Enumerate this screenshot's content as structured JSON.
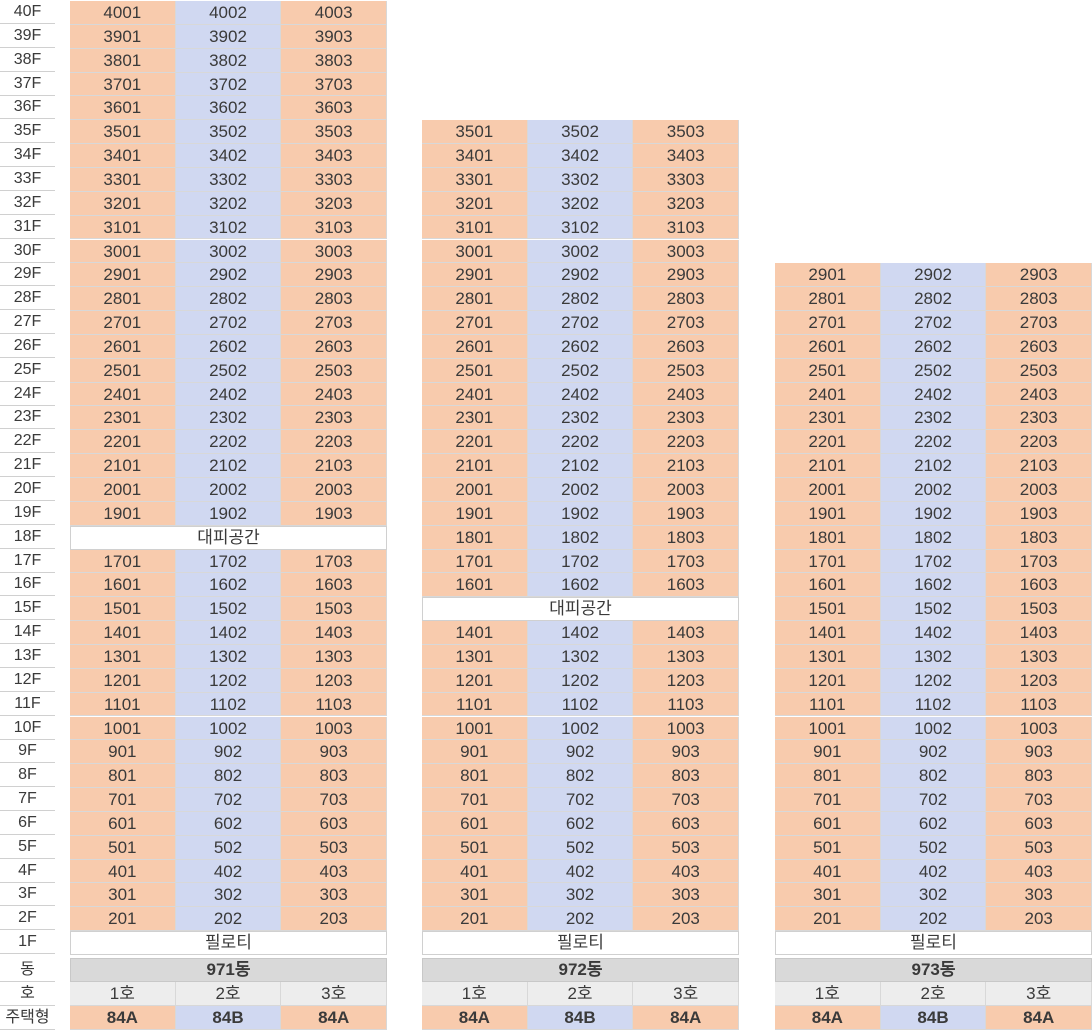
{
  "floor_labels": [
    "40F",
    "39F",
    "38F",
    "37F",
    "36F",
    "35F",
    "34F",
    "33F",
    "32F",
    "31F",
    "30F",
    "29F",
    "28F",
    "27F",
    "26F",
    "25F",
    "24F",
    "23F",
    "22F",
    "21F",
    "20F",
    "19F",
    "18F",
    "17F",
    "16F",
    "15F",
    "14F",
    "13F",
    "12F",
    "11F",
    "10F",
    "9F",
    "8F",
    "7F",
    "6F",
    "5F",
    "4F",
    "3F",
    "2F",
    "1F"
  ],
  "footer_labels": {
    "dong": "동",
    "ho": "호",
    "type": "주택형"
  },
  "colors": {
    "type_a": "#f8cbad",
    "type_b": "#d0d8f1",
    "header": "#d9d9d9",
    "ho_row": "#ededed"
  },
  "buildings": [
    {
      "name": "971동",
      "ho": [
        "1호",
        "2호",
        "3호"
      ],
      "types": [
        "84A",
        "84B",
        "84A"
      ],
      "rows": [
        [
          "4001",
          "4002",
          "4003"
        ],
        [
          "3901",
          "3902",
          "3903"
        ],
        [
          "3801",
          "3802",
          "3803"
        ],
        [
          "3701",
          "3702",
          "3703"
        ],
        [
          "3601",
          "3602",
          "3603"
        ],
        [
          "3501",
          "3502",
          "3503"
        ],
        [
          "3401",
          "3402",
          "3403"
        ],
        [
          "3301",
          "3302",
          "3303"
        ],
        [
          "3201",
          "3202",
          "3203"
        ],
        [
          "3101",
          "3102",
          "3103"
        ],
        [
          "3001",
          "3002",
          "3003"
        ],
        [
          "2901",
          "2902",
          "2903"
        ],
        [
          "2801",
          "2802",
          "2803"
        ],
        [
          "2701",
          "2702",
          "2703"
        ],
        [
          "2601",
          "2602",
          "2603"
        ],
        [
          "2501",
          "2502",
          "2503"
        ],
        [
          "2401",
          "2402",
          "2403"
        ],
        [
          "2301",
          "2302",
          "2303"
        ],
        [
          "2201",
          "2202",
          "2203"
        ],
        [
          "2101",
          "2102",
          "2103"
        ],
        [
          "2001",
          "2002",
          "2003"
        ],
        [
          "1901",
          "1902",
          "1903"
        ],
        "대피공간",
        [
          "1701",
          "1702",
          "1703"
        ],
        [
          "1601",
          "1602",
          "1603"
        ],
        [
          "1501",
          "1502",
          "1503"
        ],
        [
          "1401",
          "1402",
          "1403"
        ],
        [
          "1301",
          "1302",
          "1303"
        ],
        [
          "1201",
          "1202",
          "1203"
        ],
        [
          "1101",
          "1102",
          "1103"
        ],
        [
          "1001",
          "1002",
          "1003"
        ],
        [
          "901",
          "902",
          "903"
        ],
        [
          "801",
          "802",
          "803"
        ],
        [
          "701",
          "702",
          "703"
        ],
        [
          "601",
          "602",
          "603"
        ],
        [
          "501",
          "502",
          "503"
        ],
        [
          "401",
          "402",
          "403"
        ],
        [
          "301",
          "302",
          "303"
        ],
        [
          "201",
          "202",
          "203"
        ],
        "필로티"
      ]
    },
    {
      "name": "972동",
      "ho": [
        "1호",
        "2호",
        "3호"
      ],
      "types": [
        "84A",
        "84B",
        "84A"
      ],
      "rows": [
        null,
        null,
        null,
        null,
        null,
        [
          "3501",
          "3502",
          "3503"
        ],
        [
          "3401",
          "3402",
          "3403"
        ],
        [
          "3301",
          "3302",
          "3303"
        ],
        [
          "3201",
          "3202",
          "3203"
        ],
        [
          "3101",
          "3102",
          "3103"
        ],
        [
          "3001",
          "3002",
          "3003"
        ],
        [
          "2901",
          "2902",
          "2903"
        ],
        [
          "2801",
          "2802",
          "2803"
        ],
        [
          "2701",
          "2702",
          "2703"
        ],
        [
          "2601",
          "2602",
          "2603"
        ],
        [
          "2501",
          "2502",
          "2503"
        ],
        [
          "2401",
          "2402",
          "2403"
        ],
        [
          "2301",
          "2302",
          "2303"
        ],
        [
          "2201",
          "2202",
          "2203"
        ],
        [
          "2101",
          "2102",
          "2103"
        ],
        [
          "2001",
          "2002",
          "2003"
        ],
        [
          "1901",
          "1902",
          "1903"
        ],
        [
          "1801",
          "1802",
          "1803"
        ],
        [
          "1701",
          "1702",
          "1703"
        ],
        [
          "1601",
          "1602",
          "1603"
        ],
        "대피공간",
        [
          "1401",
          "1402",
          "1403"
        ],
        [
          "1301",
          "1302",
          "1303"
        ],
        [
          "1201",
          "1202",
          "1203"
        ],
        [
          "1101",
          "1102",
          "1103"
        ],
        [
          "1001",
          "1002",
          "1003"
        ],
        [
          "901",
          "902",
          "903"
        ],
        [
          "801",
          "802",
          "803"
        ],
        [
          "701",
          "702",
          "703"
        ],
        [
          "601",
          "602",
          "603"
        ],
        [
          "501",
          "502",
          "503"
        ],
        [
          "401",
          "402",
          "403"
        ],
        [
          "301",
          "302",
          "303"
        ],
        [
          "201",
          "202",
          "203"
        ],
        "필로티"
      ]
    },
    {
      "name": "973동",
      "ho": [
        "1호",
        "2호",
        "3호"
      ],
      "types": [
        "84A",
        "84B",
        "84A"
      ],
      "rows": [
        null,
        null,
        null,
        null,
        null,
        null,
        null,
        null,
        null,
        null,
        null,
        [
          "2901",
          "2902",
          "2903"
        ],
        [
          "2801",
          "2802",
          "2803"
        ],
        [
          "2701",
          "2702",
          "2703"
        ],
        [
          "2601",
          "2602",
          "2603"
        ],
        [
          "2501",
          "2502",
          "2503"
        ],
        [
          "2401",
          "2402",
          "2403"
        ],
        [
          "2301",
          "2302",
          "2303"
        ],
        [
          "2201",
          "2202",
          "2203"
        ],
        [
          "2101",
          "2102",
          "2103"
        ],
        [
          "2001",
          "2002",
          "2003"
        ],
        [
          "1901",
          "1902",
          "1903"
        ],
        [
          "1801",
          "1802",
          "1803"
        ],
        [
          "1701",
          "1702",
          "1703"
        ],
        [
          "1601",
          "1602",
          "1603"
        ],
        [
          "1501",
          "1502",
          "1503"
        ],
        [
          "1401",
          "1402",
          "1403"
        ],
        [
          "1301",
          "1302",
          "1303"
        ],
        [
          "1201",
          "1202",
          "1203"
        ],
        [
          "1101",
          "1102",
          "1103"
        ],
        [
          "1001",
          "1002",
          "1003"
        ],
        [
          "901",
          "902",
          "903"
        ],
        [
          "801",
          "802",
          "803"
        ],
        [
          "701",
          "702",
          "703"
        ],
        [
          "601",
          "602",
          "603"
        ],
        [
          "501",
          "502",
          "503"
        ],
        [
          "401",
          "402",
          "403"
        ],
        [
          "301",
          "302",
          "303"
        ],
        [
          "201",
          "202",
          "203"
        ],
        "필로티"
      ]
    }
  ]
}
